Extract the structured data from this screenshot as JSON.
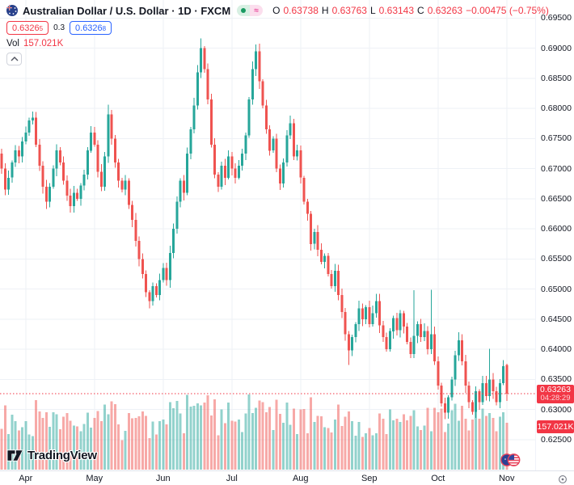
{
  "header": {
    "title": "Australian Dollar / U.S. Dollar · 1D · FXCM",
    "status": {
      "delayed_symbol": "≈"
    },
    "ohlc": {
      "o_label": "O",
      "o": "0.63738",
      "h_label": "H",
      "h": "0.63763",
      "l_label": "L",
      "l": "0.63143",
      "c_label": "C",
      "c": "0.63263",
      "change": "−0.00475 (−0.75%)"
    },
    "quote": {
      "sell": "0.6326",
      "sell_sup": "5",
      "spread": "0.3",
      "buy": "0.6326",
      "buy_sup": "8"
    },
    "vol": {
      "label": "Vol",
      "value": "157.021K"
    }
  },
  "price_scale": {
    "labels": [
      "0.69500",
      "0.69000",
      "0.68500",
      "0.68000",
      "0.67500",
      "0.67000",
      "0.66500",
      "0.66000",
      "0.65500",
      "0.65000",
      "0.64500",
      "0.64000",
      "0.63500",
      "0.63000",
      "0.62500"
    ],
    "price_badge": {
      "value": "0.63263",
      "countdown": "04:28:29"
    },
    "volume_badge": "157.021K"
  },
  "time_scale": {
    "months": [
      {
        "label": "Apr",
        "day": 7
      },
      {
        "label": "May",
        "day": 27
      },
      {
        "label": "Jun",
        "day": 47
      },
      {
        "label": "Jul",
        "day": 67
      },
      {
        "label": "Aug",
        "day": 87
      },
      {
        "label": "Sep",
        "day": 107
      },
      {
        "label": "Oct",
        "day": 127
      },
      {
        "label": "Nov",
        "day": 147
      }
    ]
  },
  "branding": {
    "name": "TradingView"
  },
  "chart_data": {
    "type": "candlestick",
    "symbol": "AUDUSD",
    "interval": "1D",
    "exchange": "FXCM",
    "title": "Australian Dollar / U.S. Dollar",
    "price_axis": {
      "min": 0.625,
      "max": 0.695,
      "grid_step": 0.005
    },
    "grid": true,
    "last": {
      "open": 0.63738,
      "high": 0.63763,
      "low": 0.63143,
      "close": 0.63263,
      "change": -0.00475,
      "change_pct": -0.75
    },
    "last_volume_k": 157.021,
    "first_open": 0.6725,
    "closes": [
      0.67,
      0.6665,
      0.6685,
      0.671,
      0.673,
      0.672,
      0.6745,
      0.676,
      0.678,
      0.6785,
      0.674,
      0.6705,
      0.667,
      0.6645,
      0.667,
      0.67,
      0.673,
      0.671,
      0.668,
      0.6655,
      0.6638,
      0.666,
      0.665,
      0.6672,
      0.669,
      0.673,
      0.676,
      0.674,
      0.6695,
      0.667,
      0.672,
      0.679,
      0.675,
      0.671,
      0.668,
      0.6665,
      0.668,
      0.664,
      0.6615,
      0.658,
      0.655,
      0.6525,
      0.6495,
      0.648,
      0.6505,
      0.649,
      0.6515,
      0.6535,
      0.6515,
      0.656,
      0.66,
      0.6645,
      0.668,
      0.666,
      0.6725,
      0.6765,
      0.6805,
      0.686,
      0.69,
      0.6865,
      0.6815,
      0.674,
      0.669,
      0.667,
      0.6705,
      0.6685,
      0.672,
      0.67,
      0.6685,
      0.6705,
      0.6725,
      0.6755,
      0.6815,
      0.6865,
      0.6895,
      0.6845,
      0.6805,
      0.6765,
      0.673,
      0.675,
      0.67,
      0.6675,
      0.671,
      0.6755,
      0.6775,
      0.672,
      0.673,
      0.6685,
      0.6645,
      0.6625,
      0.6575,
      0.6595,
      0.6565,
      0.6545,
      0.6555,
      0.6525,
      0.6505,
      0.653,
      0.649,
      0.6462,
      0.6425,
      0.6398,
      0.642,
      0.6442,
      0.6468,
      0.645,
      0.647,
      0.6442,
      0.646,
      0.648,
      0.644,
      0.642,
      0.64,
      0.643,
      0.6452,
      0.6432,
      0.646,
      0.6438,
      0.6412,
      0.6392,
      0.6422,
      0.6442,
      0.642,
      0.643,
      0.64,
      0.6425,
      0.638,
      0.634,
      0.631,
      0.6295,
      0.632,
      0.635,
      0.639,
      0.6415,
      0.638,
      0.634,
      0.6312,
      0.6296,
      0.633,
      0.6312,
      0.6344,
      0.6322,
      0.635,
      0.633,
      0.6312,
      0.6344,
      0.6372,
      0.63263
    ],
    "spikes": {
      "9": {
        "high": 0.6795
      },
      "13": {
        "low": 0.6633
      },
      "20": {
        "low": 0.6627
      },
      "31": {
        "high": 0.6806
      },
      "43": {
        "low": 0.6469
      },
      "58": {
        "high": 0.6916
      },
      "74": {
        "high": 0.6906
      },
      "101": {
        "low": 0.6374
      },
      "120": {
        "high": 0.6498
      },
      "125": {
        "high": 0.6499
      },
      "129": {
        "low": 0.6284
      },
      "133": {
        "high": 0.6428
      },
      "142": {
        "high": 0.6401
      }
    },
    "colors": {
      "up": "#26a69a",
      "down": "#ef5350",
      "vol_up": "rgba(38,166,154,0.5)",
      "vol_down": "rgba(239,83,80,0.5)",
      "price_line": "#f23645",
      "grid": "#eef1f6"
    }
  }
}
